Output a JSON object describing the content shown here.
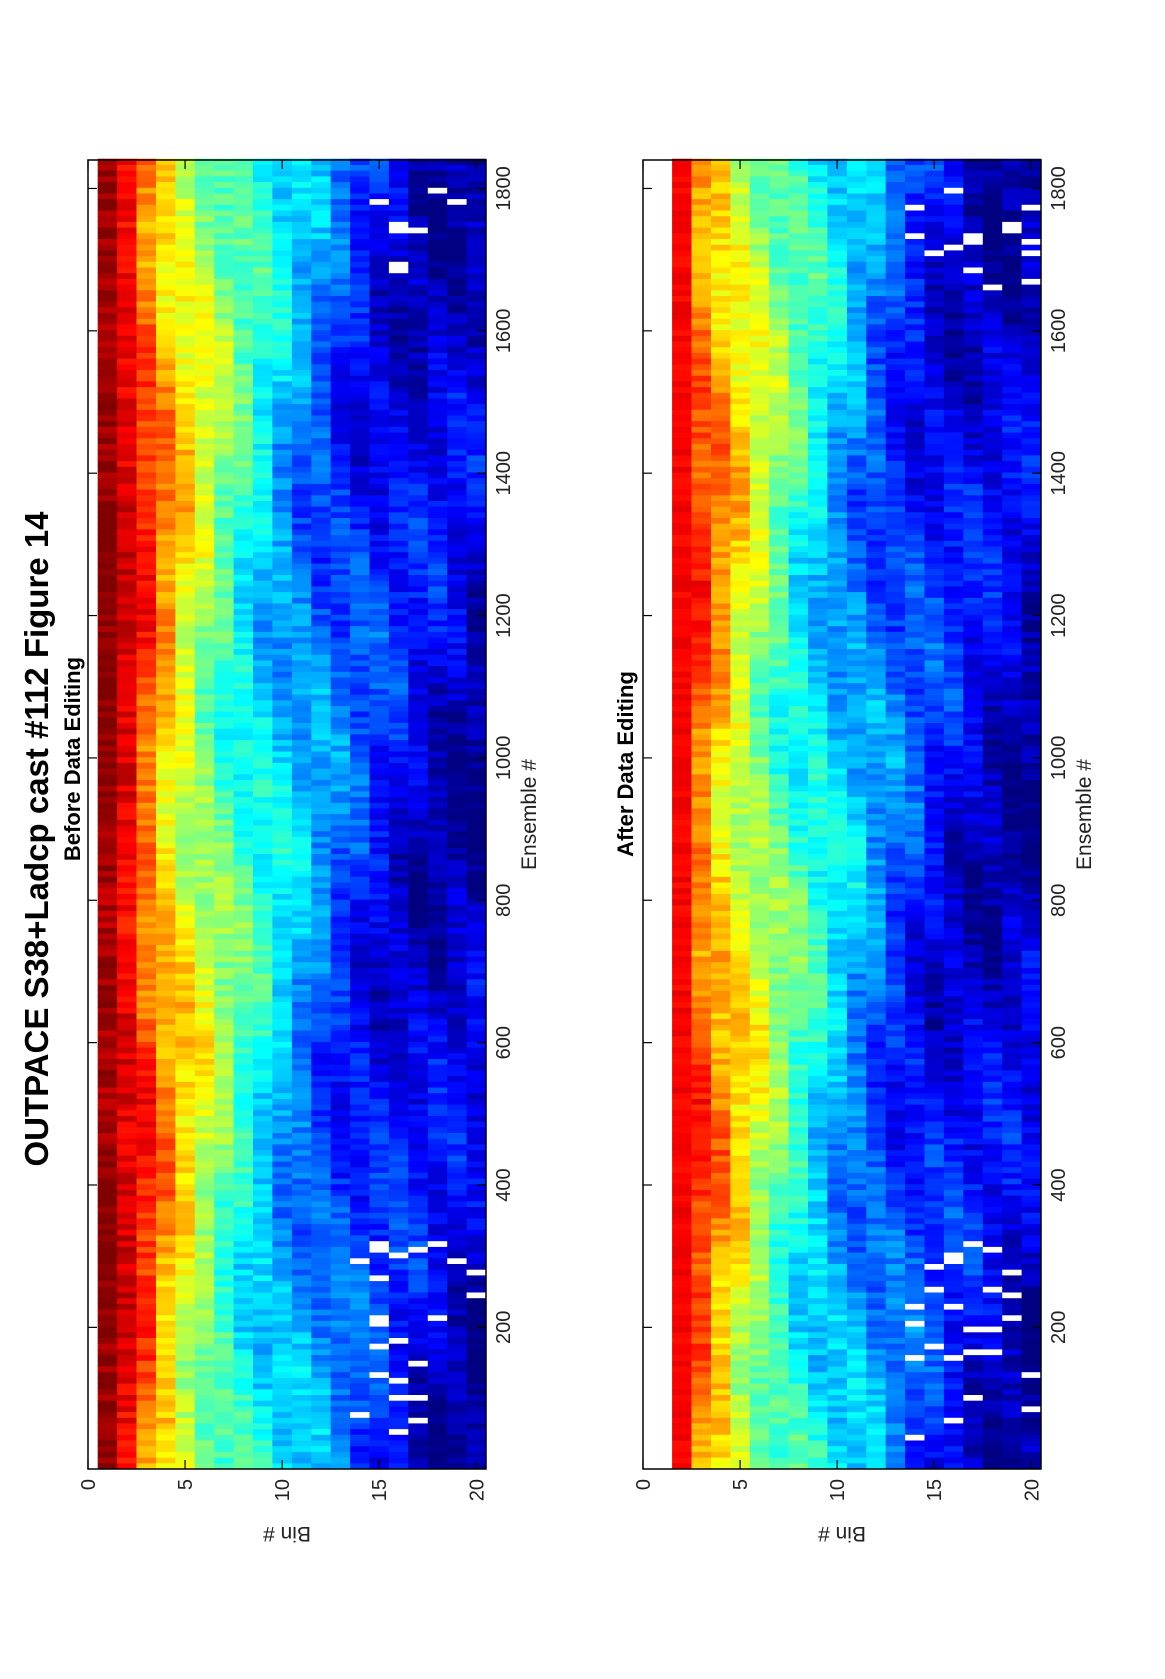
{
  "figure": {
    "title": "OUTPACE S38+Ladcp cast #112  Figure 14",
    "orientation": "rotated-90-ccw"
  },
  "chart_data": [
    {
      "type": "heatmap",
      "subtitle": "Before Data Editing",
      "xlabel": "Ensemble #",
      "ylabel": "Bin #",
      "xlim": [
        1,
        1840
      ],
      "ylim": [
        0,
        20.5
      ],
      "x_ticks": [
        200,
        400,
        600,
        800,
        1000,
        1200,
        1400,
        1600,
        1800
      ],
      "y_ticks": [
        0,
        5,
        10,
        15,
        20
      ],
      "bins": 20,
      "colormap": "jet",
      "first_valid_bin": 1,
      "value_profile_by_bin": [
        0.98,
        0.9,
        0.8,
        0.7,
        0.62,
        0.55,
        0.48,
        0.42,
        0.37,
        0.32,
        0.28,
        0.24,
        0.2,
        0.17,
        0.14,
        0.12,
        0.1,
        0.09,
        0.08,
        0.07
      ],
      "gaps": "scattered white dashes in bins 14-20 near ensembles 20-320 and 1650-1800"
    },
    {
      "type": "heatmap",
      "subtitle": "After Data Editing",
      "xlabel": "Ensemble #",
      "ylabel": "Bin #",
      "xlim": [
        1,
        1840
      ],
      "ylim": [
        0,
        20.5
      ],
      "x_ticks": [
        200,
        400,
        600,
        800,
        1000,
        1200,
        1400,
        1600,
        1800
      ],
      "y_ticks": [
        0,
        5,
        10,
        15,
        20
      ],
      "bins": 20,
      "colormap": "jet",
      "first_valid_bin": 2,
      "value_profile_by_bin": [
        0.9,
        0.86,
        0.78,
        0.7,
        0.62,
        0.55,
        0.48,
        0.42,
        0.37,
        0.32,
        0.28,
        0.24,
        0.2,
        0.17,
        0.14,
        0.12,
        0.1,
        0.09,
        0.08,
        0.07
      ],
      "gaps": "scattered white dashes in bins 14-20 near ensembles 20-320 and 1650-1800"
    }
  ]
}
